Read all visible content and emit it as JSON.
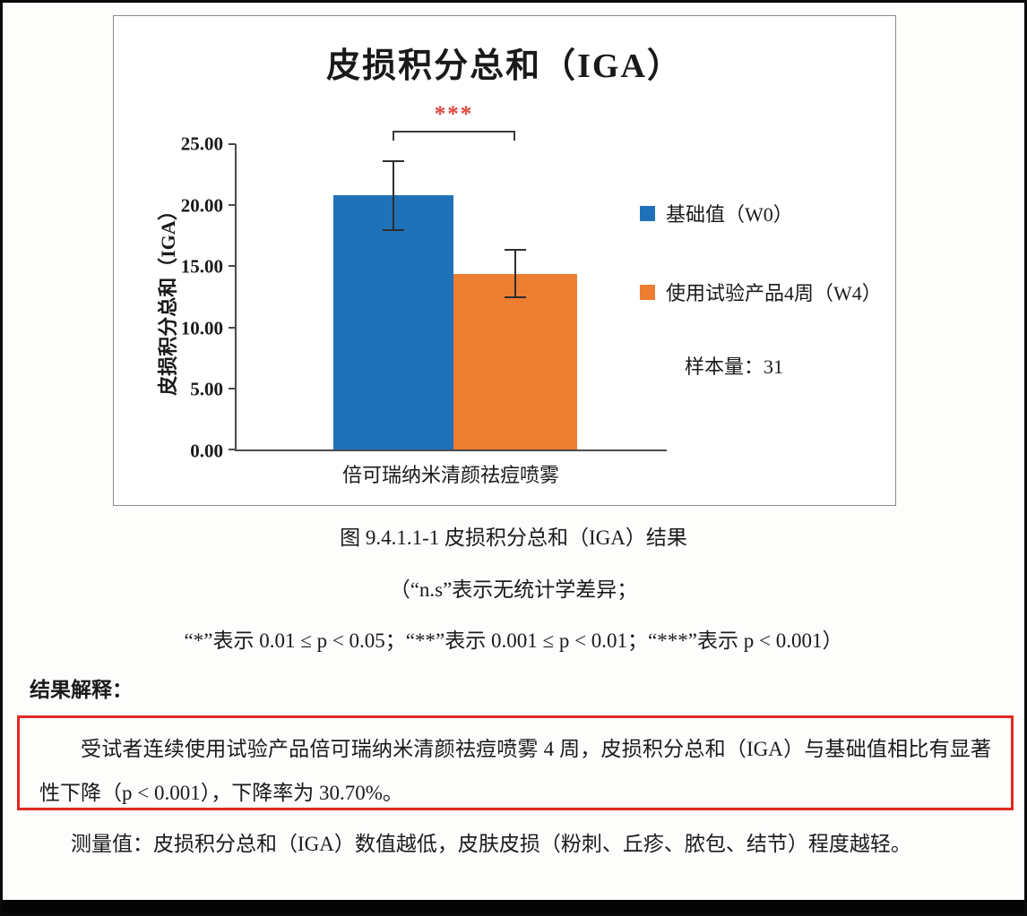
{
  "page": {
    "figure_caption": "图 9.4.1.1-1 皮损积分总和（IGA）结果",
    "note_line1": "（“n.s”表示无统计学差异；",
    "note_line2": "“*”表示 0.01 ≤ p < 0.05；“**”表示 0.001 ≤ p < 0.01；“***”表示 p < 0.001）",
    "result_heading": "结果解释：",
    "result_highlight": "受试者连续使用试验产品倍可瑞纳米清颜祛痘喷雾 4 周，皮损积分总和（IGA）与基础值相比有显著性下降（p < 0.001），下降率为 30.70%。",
    "measurement_note": "测量值：皮损积分总和（IGA）数值越低，皮肤皮损（粉刺、丘疹、脓包、结节）程度越轻。",
    "sample_size_label": "样本量：31"
  },
  "chart_data": {
    "type": "bar",
    "title": "皮损积分总和（IGA）",
    "ylabel": "皮损积分总和（IGA）",
    "xlabel": "",
    "categories": [
      "倍可瑞纳米清颜祛痘喷雾"
    ],
    "series": [
      {
        "name": "基础值（W0）",
        "values": [
          20.8
        ],
        "error": [
          2.9
        ],
        "color": "#1f72b8"
      },
      {
        "name": "使用试验产品4周（W4）",
        "values": [
          14.4
        ],
        "error": [
          2.0
        ],
        "color": "#ed7d31"
      }
    ],
    "ylim": [
      0,
      25
    ],
    "yticks": [
      "25.00",
      "20.00",
      "15.00",
      "10.00",
      "5.00",
      "0.00"
    ],
    "significance": "***",
    "significance_note": "p < 0.001",
    "sample_size": 31,
    "legend_position": "right",
    "grid": false
  }
}
